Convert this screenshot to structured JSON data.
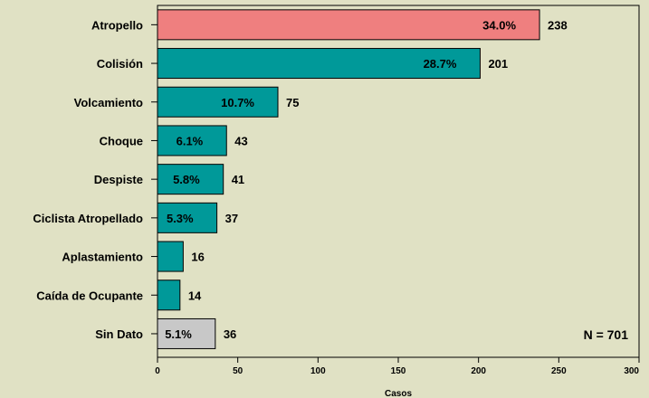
{
  "chart_data": {
    "type": "bar",
    "orientation": "horizontal",
    "categories": [
      "Atropello",
      "Colisión",
      "Volcamiento",
      "Choque",
      "Despiste",
      "Ciclista Atropellado",
      "Aplastamiento",
      "Caída de Ocupante",
      "Sin Dato"
    ],
    "values": [
      238,
      201,
      75,
      43,
      41,
      37,
      16,
      14,
      36
    ],
    "value_labels": [
      "238",
      "201",
      "75",
      "43",
      "41",
      "37",
      "16",
      "14",
      "36"
    ],
    "percent_labels": [
      "34.0%",
      "28.7%",
      "10.7%",
      "6.1%",
      "5.8%",
      "5.3%",
      "",
      "",
      "5.1%"
    ],
    "xlabel": "Casos",
    "xlim": [
      0,
      300
    ],
    "xticks": [
      0,
      50,
      100,
      150,
      200,
      250,
      300
    ],
    "xtick_labels": [
      "0",
      "50",
      "100",
      "150",
      "200",
      "250",
      "300"
    ],
    "annotation": "N = 701",
    "grid": false,
    "colors": {
      "background": "#e0e1c4",
      "plot_border": "#000000",
      "bars": [
        "#ef7f7f",
        "#009999",
        "#009999",
        "#009999",
        "#009999",
        "#009999",
        "#009999",
        "#009999",
        "#c8c8c8"
      ]
    }
  }
}
